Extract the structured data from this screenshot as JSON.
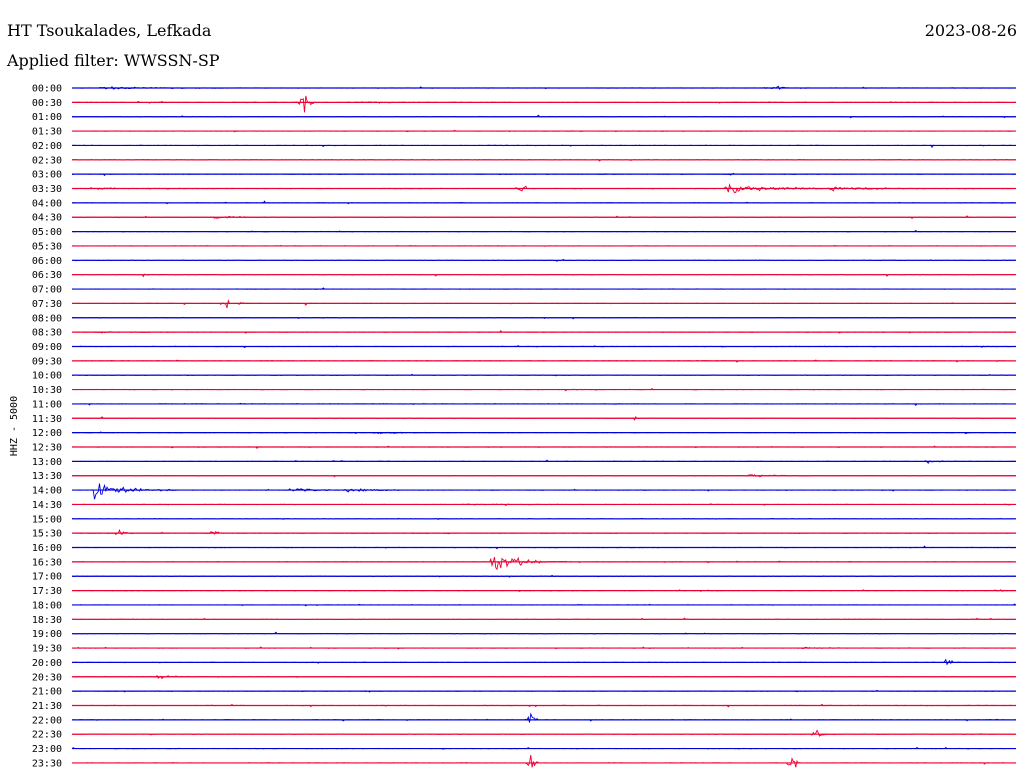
{
  "header": {
    "station": "HT Tsoukalades, Lefkada",
    "date": "2023-08-26",
    "filter": "Applied filter: WWSSN-SP"
  },
  "colors": {
    "trace_a": "#0000dd",
    "trace_b": "#ee0033",
    "background": "#ffffff",
    "text": "#000000"
  },
  "chart_data": {
    "type": "line",
    "subtype": "helicorder",
    "title": "HT Tsoukalades, Lefkada",
    "ylabel": "HHZ - 5000",
    "row_labels": [
      "00:00",
      "00:30",
      "01:00",
      "01:30",
      "02:00",
      "02:30",
      "03:00",
      "03:30",
      "04:00",
      "04:30",
      "05:00",
      "05:30",
      "06:00",
      "06:30",
      "07:00",
      "07:30",
      "08:00",
      "08:30",
      "09:00",
      "09:30",
      "10:00",
      "10:30",
      "11:00",
      "11:30",
      "12:00",
      "12:30",
      "13:00",
      "13:30",
      "14:00",
      "14:30",
      "15:00",
      "15:30",
      "16:00",
      "16:30",
      "17:00",
      "17:30",
      "18:00",
      "18:30",
      "19:00",
      "19:30",
      "20:00",
      "20:30",
      "21:00",
      "21:30",
      "22:00",
      "22:30",
      "23:00",
      "23:30"
    ],
    "minutes_per_row": 30,
    "trace_colors": [
      "#0000dd",
      "#ee0033"
    ],
    "grid": false,
    "events": [
      {
        "row": 0,
        "minute": 1.0,
        "amp": 0.35,
        "dur": 2.5,
        "kind": "quake"
      },
      {
        "row": 0,
        "minute": 22.4,
        "amp": 0.6,
        "dur": 0.4,
        "kind": "spike"
      },
      {
        "row": 1,
        "minute": 7.4,
        "amp": 4.5,
        "dur": 0.3,
        "kind": "spike"
      },
      {
        "row": 1,
        "minute": 9.2,
        "amp": 0.18,
        "dur": 1.5,
        "kind": "quake"
      },
      {
        "row": 7,
        "minute": 0.5,
        "amp": 0.15,
        "dur": 3.5,
        "kind": "quake"
      },
      {
        "row": 7,
        "minute": 14.3,
        "amp": 1.4,
        "dur": 0.2,
        "kind": "spike"
      },
      {
        "row": 7,
        "minute": 20.8,
        "amp": 1.2,
        "dur": 2.5,
        "kind": "quake"
      },
      {
        "row": 7,
        "minute": 24.1,
        "amp": 0.6,
        "dur": 2.0,
        "kind": "quake"
      },
      {
        "row": 9,
        "minute": 4.6,
        "amp": 0.35,
        "dur": 1.4,
        "kind": "quake"
      },
      {
        "row": 13,
        "minute": 2.4,
        "amp": 0.1,
        "dur": 1.0,
        "kind": "quake"
      },
      {
        "row": 15,
        "minute": 4.8,
        "amp": 1.3,
        "dur": 0.5,
        "kind": "quake"
      },
      {
        "row": 17,
        "minute": 0.9,
        "amp": 0.15,
        "dur": 1.5,
        "kind": "quake"
      },
      {
        "row": 24,
        "minute": 9.7,
        "amp": 0.6,
        "dur": 0.8,
        "kind": "quake"
      },
      {
        "row": 26,
        "minute": 27.2,
        "amp": 0.4,
        "dur": 0.8,
        "kind": "quake"
      },
      {
        "row": 27,
        "minute": 21.5,
        "amp": 0.4,
        "dur": 1.5,
        "kind": "quake"
      },
      {
        "row": 28,
        "minute": 0.7,
        "amp": 1.8,
        "dur": 2.0,
        "kind": "quake"
      },
      {
        "row": 28,
        "minute": 7.0,
        "amp": 0.45,
        "dur": 1.5,
        "kind": "quake"
      },
      {
        "row": 28,
        "minute": 8.7,
        "amp": 0.5,
        "dur": 1.5,
        "kind": "quake"
      },
      {
        "row": 29,
        "minute": 12.5,
        "amp": 0.12,
        "dur": 2.5,
        "kind": "quake"
      },
      {
        "row": 31,
        "minute": 1.5,
        "amp": 0.9,
        "dur": 0.3,
        "kind": "spike"
      },
      {
        "row": 31,
        "minute": 4.5,
        "amp": 0.9,
        "dur": 0.3,
        "kind": "spike"
      },
      {
        "row": 33,
        "minute": 13.4,
        "amp": 2.6,
        "dur": 1.5,
        "kind": "quake"
      },
      {
        "row": 35,
        "minute": 29.5,
        "amp": 0.3,
        "dur": 0.2,
        "kind": "spike"
      },
      {
        "row": 39,
        "minute": 23.1,
        "amp": 0.2,
        "dur": 1.8,
        "kind": "quake"
      },
      {
        "row": 40,
        "minute": 27.8,
        "amp": 2.5,
        "dur": 0.2,
        "kind": "spike"
      },
      {
        "row": 41,
        "minute": 2.7,
        "amp": 0.45,
        "dur": 0.8,
        "kind": "quake"
      },
      {
        "row": 44,
        "minute": 14.6,
        "amp": 2.5,
        "dur": 0.2,
        "kind": "spike"
      },
      {
        "row": 45,
        "minute": 23.7,
        "amp": 1.0,
        "dur": 0.3,
        "kind": "spike"
      },
      {
        "row": 47,
        "minute": 14.6,
        "amp": 3.0,
        "dur": 0.2,
        "kind": "spike"
      },
      {
        "row": 47,
        "minute": 22.9,
        "amp": 3.0,
        "dur": 0.2,
        "kind": "spike"
      }
    ]
  }
}
